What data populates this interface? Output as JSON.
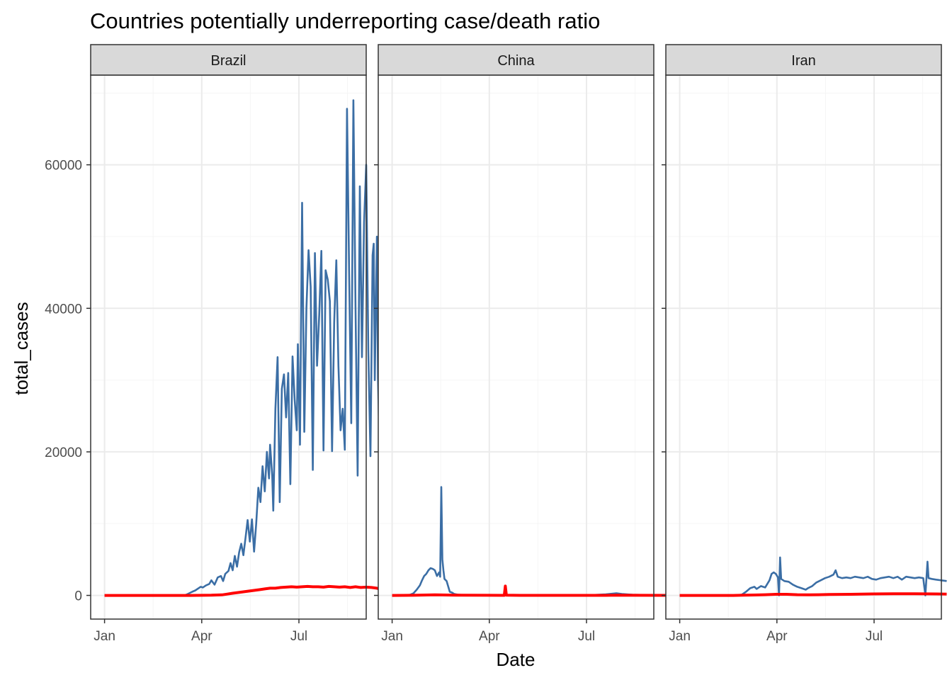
{
  "chart_data": {
    "type": "line",
    "title": "Countries potentially underreporting case/death ratio",
    "xlabel": "Date",
    "ylabel": "total_cases",
    "x_ticks": [
      "Jan",
      "Apr",
      "Jul"
    ],
    "x_tick_days": [
      0,
      91,
      182
    ],
    "y_ticks": [
      0,
      20000,
      40000,
      60000
    ],
    "ylim": [
      -3300,
      72500
    ],
    "xlim_days": [
      -13,
      245
    ],
    "grid": true,
    "colors": {
      "cases": "#3b6ea5",
      "deaths": "#ff0000",
      "strip": "#d9d9d9",
      "grid_major": "#ebebeb",
      "grid_minor": "#f5f5f5"
    },
    "panels": [
      {
        "label": "Brazil",
        "cases": [
          [
            0,
            0
          ],
          [
            45,
            0
          ],
          [
            75,
            0
          ],
          [
            78,
            200
          ],
          [
            82,
            500
          ],
          [
            85,
            700
          ],
          [
            88,
            1000
          ],
          [
            90,
            1200
          ],
          [
            92,
            1100
          ],
          [
            95,
            1400
          ],
          [
            98,
            1600
          ],
          [
            100,
            2100
          ],
          [
            103,
            1500
          ],
          [
            106,
            2500
          ],
          [
            109,
            2700
          ],
          [
            111,
            2000
          ],
          [
            113,
            3000
          ],
          [
            116,
            3400
          ],
          [
            118,
            4500
          ],
          [
            120,
            3500
          ],
          [
            122,
            5500
          ],
          [
            124,
            4000
          ],
          [
            126,
            6000
          ],
          [
            128,
            7200
          ],
          [
            130,
            5600
          ],
          [
            132,
            8000
          ],
          [
            134,
            10500
          ],
          [
            136,
            7500
          ],
          [
            138,
            10600
          ],
          [
            140,
            6100
          ],
          [
            142,
            10000
          ],
          [
            144,
            15000
          ],
          [
            146,
            13000
          ],
          [
            148,
            18000
          ],
          [
            150,
            14500
          ],
          [
            152,
            20000
          ],
          [
            154,
            16300
          ],
          [
            155,
            21000
          ],
          [
            157,
            16700
          ],
          [
            158,
            11800
          ],
          [
            160,
            26000
          ],
          [
            162,
            33200
          ],
          [
            164,
            13000
          ],
          [
            166,
            28800
          ],
          [
            168,
            30800
          ],
          [
            170,
            24800
          ],
          [
            172,
            31000
          ],
          [
            174,
            15500
          ],
          [
            176,
            33300
          ],
          [
            178,
            27300
          ],
          [
            180,
            23000
          ],
          [
            181,
            35000
          ],
          [
            182,
            28400
          ],
          [
            183,
            21000
          ],
          [
            185,
            54700
          ],
          [
            187,
            22800
          ],
          [
            189,
            40000
          ],
          [
            191,
            48100
          ],
          [
            193,
            43000
          ],
          [
            195,
            17500
          ],
          [
            197,
            47700
          ],
          [
            199,
            32000
          ],
          [
            201,
            39200
          ],
          [
            203,
            48000
          ],
          [
            205,
            20200
          ],
          [
            207,
            45300
          ],
          [
            209,
            44000
          ],
          [
            211,
            41000
          ],
          [
            213,
            20100
          ],
          [
            215,
            38000
          ],
          [
            217,
            46700
          ],
          [
            219,
            32000
          ],
          [
            221,
            23000
          ],
          [
            223,
            26000
          ],
          [
            225,
            20300
          ],
          [
            227,
            67800
          ],
          [
            229,
            45000
          ],
          [
            231,
            24000
          ],
          [
            233,
            69000
          ],
          [
            235,
            40300
          ],
          [
            237,
            16700
          ],
          [
            239,
            57000
          ],
          [
            241,
            33200
          ],
          [
            243,
            52000
          ],
          [
            245,
            60000
          ],
          [
            247,
            34000
          ],
          [
            249,
            19400
          ],
          [
            251,
            47400
          ],
          [
            252,
            49000
          ],
          [
            253,
            30000
          ],
          [
            255,
            50000
          ],
          [
            256,
            30300
          ],
          [
            257,
            23500
          ]
        ],
        "deaths": [
          [
            0,
            0
          ],
          [
            80,
            0
          ],
          [
            100,
            30
          ],
          [
            110,
            80
          ],
          [
            115,
            180
          ],
          [
            120,
            300
          ],
          [
            125,
            400
          ],
          [
            130,
            500
          ],
          [
            135,
            600
          ],
          [
            140,
            700
          ],
          [
            145,
            800
          ],
          [
            150,
            900
          ],
          [
            155,
            1000
          ],
          [
            160,
            1000
          ],
          [
            165,
            1100
          ],
          [
            170,
            1150
          ],
          [
            175,
            1200
          ],
          [
            180,
            1150
          ],
          [
            185,
            1200
          ],
          [
            190,
            1250
          ],
          [
            195,
            1200
          ],
          [
            200,
            1200
          ],
          [
            205,
            1150
          ],
          [
            210,
            1250
          ],
          [
            215,
            1200
          ],
          [
            220,
            1150
          ],
          [
            225,
            1200
          ],
          [
            230,
            1100
          ],
          [
            235,
            1200
          ],
          [
            240,
            1100
          ],
          [
            245,
            1150
          ],
          [
            250,
            1100
          ],
          [
            255,
            1000
          ],
          [
            257,
            900
          ]
        ]
      },
      {
        "label": "China",
        "cases": [
          [
            0,
            0
          ],
          [
            10,
            0
          ],
          [
            14,
            50
          ],
          [
            17,
            100
          ],
          [
            20,
            300
          ],
          [
            23,
            800
          ],
          [
            26,
            1400
          ],
          [
            28,
            2100
          ],
          [
            30,
            2700
          ],
          [
            32,
            3000
          ],
          [
            34,
            3500
          ],
          [
            36,
            3800
          ],
          [
            38,
            3700
          ],
          [
            40,
            3500
          ],
          [
            42,
            2700
          ],
          [
            44,
            3200
          ],
          [
            45,
            2600
          ],
          [
            46,
            15100
          ],
          [
            47,
            5000
          ],
          [
            48,
            3500
          ],
          [
            49,
            2300
          ],
          [
            51,
            2000
          ],
          [
            52,
            1500
          ],
          [
            54,
            500
          ],
          [
            56,
            400
          ],
          [
            58,
            200
          ],
          [
            62,
            100
          ],
          [
            68,
            50
          ],
          [
            75,
            30
          ],
          [
            90,
            20
          ],
          [
            110,
            10
          ],
          [
            130,
            0
          ],
          [
            150,
            0
          ],
          [
            170,
            0
          ],
          [
            190,
            80
          ],
          [
            200,
            150
          ],
          [
            210,
            300
          ],
          [
            215,
            200
          ],
          [
            225,
            100
          ],
          [
            240,
            50
          ],
          [
            257,
            20
          ]
        ],
        "deaths": [
          [
            0,
            0
          ],
          [
            20,
            20
          ],
          [
            40,
            80
          ],
          [
            60,
            30
          ],
          [
            90,
            20
          ],
          [
            105,
            10
          ],
          [
            106,
            1300
          ],
          [
            107,
            30
          ],
          [
            120,
            10
          ],
          [
            200,
            10
          ],
          [
            210,
            40
          ],
          [
            220,
            20
          ],
          [
            257,
            10
          ]
        ]
      },
      {
        "label": "Iran",
        "cases": [
          [
            0,
            0
          ],
          [
            50,
            0
          ],
          [
            58,
            100
          ],
          [
            62,
            500
          ],
          [
            66,
            1000
          ],
          [
            70,
            1200
          ],
          [
            72,
            900
          ],
          [
            76,
            1300
          ],
          [
            80,
            1100
          ],
          [
            84,
            2100
          ],
          [
            86,
            3000
          ],
          [
            88,
            3200
          ],
          [
            90,
            3000
          ],
          [
            92,
            2500
          ],
          [
            93,
            0
          ],
          [
            94,
            5300
          ],
          [
            95,
            2300
          ],
          [
            98,
            2000
          ],
          [
            102,
            1900
          ],
          [
            106,
            1500
          ],
          [
            110,
            1200
          ],
          [
            114,
            1000
          ],
          [
            118,
            800
          ],
          [
            120,
            1000
          ],
          [
            124,
            1300
          ],
          [
            128,
            1800
          ],
          [
            132,
            2100
          ],
          [
            136,
            2400
          ],
          [
            140,
            2600
          ],
          [
            144,
            2900
          ],
          [
            146,
            3500
          ],
          [
            148,
            2600
          ],
          [
            152,
            2400
          ],
          [
            156,
            2500
          ],
          [
            160,
            2400
          ],
          [
            164,
            2600
          ],
          [
            168,
            2500
          ],
          [
            172,
            2400
          ],
          [
            176,
            2600
          ],
          [
            180,
            2300
          ],
          [
            184,
            2200
          ],
          [
            188,
            2400
          ],
          [
            192,
            2500
          ],
          [
            196,
            2600
          ],
          [
            200,
            2400
          ],
          [
            204,
            2600
          ],
          [
            208,
            2200
          ],
          [
            212,
            2600
          ],
          [
            216,
            2500
          ],
          [
            220,
            2400
          ],
          [
            224,
            2500
          ],
          [
            228,
            2400
          ],
          [
            230,
            0
          ],
          [
            232,
            4700
          ],
          [
            233,
            2400
          ],
          [
            236,
            2300
          ],
          [
            240,
            2200
          ],
          [
            245,
            2100
          ],
          [
            250,
            2000
          ]
        ],
        "deaths": [
          [
            0,
            0
          ],
          [
            50,
            0
          ],
          [
            60,
            30
          ],
          [
            70,
            60
          ],
          [
            80,
            100
          ],
          [
            90,
            150
          ],
          [
            100,
            150
          ],
          [
            110,
            100
          ],
          [
            120,
            80
          ],
          [
            130,
            100
          ],
          [
            140,
            120
          ],
          [
            150,
            140
          ],
          [
            160,
            150
          ],
          [
            170,
            180
          ],
          [
            180,
            200
          ],
          [
            190,
            210
          ],
          [
            200,
            220
          ],
          [
            210,
            230
          ],
          [
            220,
            220
          ],
          [
            230,
            210
          ],
          [
            240,
            200
          ],
          [
            250,
            180
          ]
        ]
      }
    ]
  }
}
